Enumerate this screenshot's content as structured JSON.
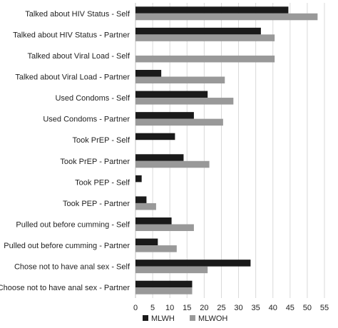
{
  "chart_data": {
    "type": "bar",
    "orientation": "horizontal",
    "categories": [
      "Talked about HIV Status - Self",
      "Talked about HIV Status - Partner",
      "Talked about Viral Load - Self",
      "Talked about Viral Load - Partner",
      "Used Condoms - Self",
      "Used Condoms - Partner",
      "Took PrEP - Self",
      "Took PrEP - Partner",
      "Took PEP - Self",
      "Took PEP - Partner",
      "Pulled out before cumming - Self",
      "Pulled out before cumming - Partner",
      "Chose not to have anal sex - Self",
      "Choose not to have anal sex - Partner"
    ],
    "series": [
      {
        "name": "MLWH",
        "color": "#1a1a1a",
        "values": [
          44.5,
          36.5,
          0,
          7.5,
          21,
          17,
          11.5,
          14,
          1.8,
          3.2,
          10.5,
          6.5,
          33.5,
          16.5
        ]
      },
      {
        "name": "MLWOH",
        "color": "#999999",
        "values": [
          53,
          40.5,
          40.5,
          26,
          28.5,
          25.5,
          0,
          21.5,
          0,
          6,
          17,
          12,
          21,
          16.5
        ]
      }
    ],
    "xlim": [
      0,
      55
    ],
    "xticks": [
      "0",
      "5",
      "10",
      "15",
      "20",
      "25",
      "30",
      "35",
      "40",
      "45",
      "50",
      "55"
    ],
    "grid": true,
    "legend_position": "bottom",
    "title": "",
    "xlabel": "",
    "ylabel": ""
  }
}
